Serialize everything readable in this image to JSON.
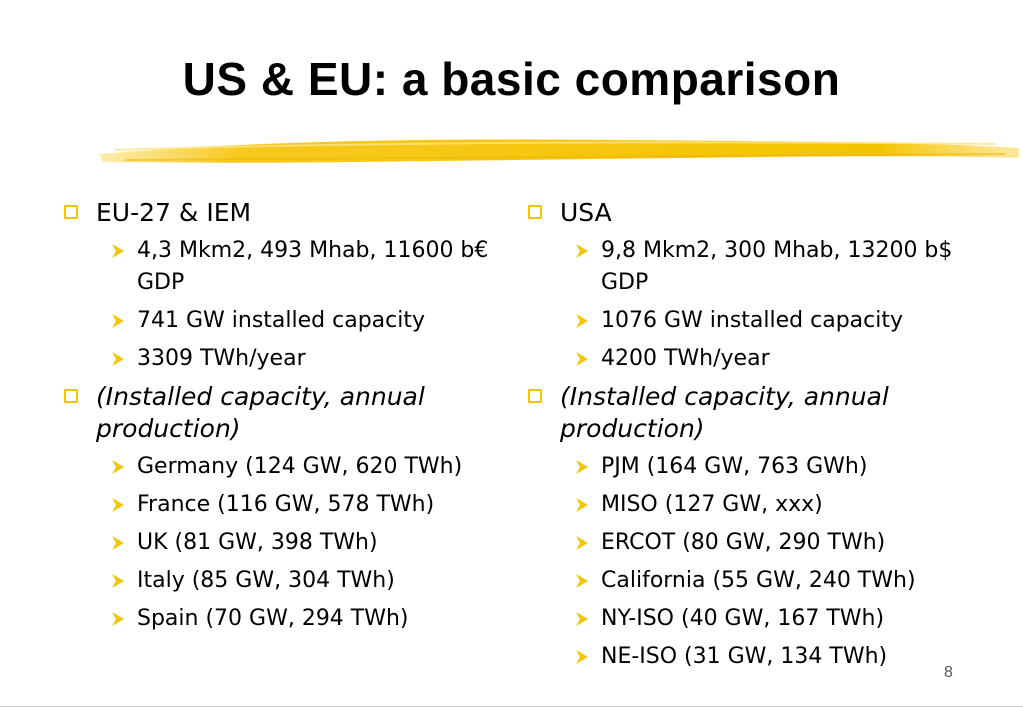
{
  "slide": {
    "title": "US & EU: a basic comparison",
    "page_number": "8"
  },
  "left": {
    "heading": "EU-27 & IEM",
    "stats": [
      "4,3 Mkm2, 493 Mhab, 11600 b€ GDP",
      "741 GW installed capacity",
      "3309 TWh/year"
    ],
    "note": "(Installed capacity, annual production)",
    "countries": [
      "Germany (124 GW, 620 TWh)",
      "France (116 GW, 578 TWh)",
      "UK (81 GW, 398 TWh)",
      "Italy (85 GW, 304 TWh)",
      "Spain (70 GW, 294 TWh)"
    ]
  },
  "right": {
    "heading": "USA",
    "stats": [
      "9,8 Mkm2, 300 Mhab, 13200 b$ GDP",
      "1076 GW installed capacity",
      "4200 TWh/year"
    ],
    "note": "(Installed capacity, annual production)",
    "regions": [
      "PJM (164 GW, 763 GWh)",
      "MISO (127 GW, xxx)",
      "ERCOT (80 GW, 290 TWh)",
      "California (55 GW, 240 TWh)",
      "NY-ISO (40 GW, 167 TWh)",
      "NE-ISO (31 GW, 134 TWh)"
    ]
  },
  "colors": {
    "accent": "#f5c400",
    "highlighter": "#f7c81e"
  }
}
